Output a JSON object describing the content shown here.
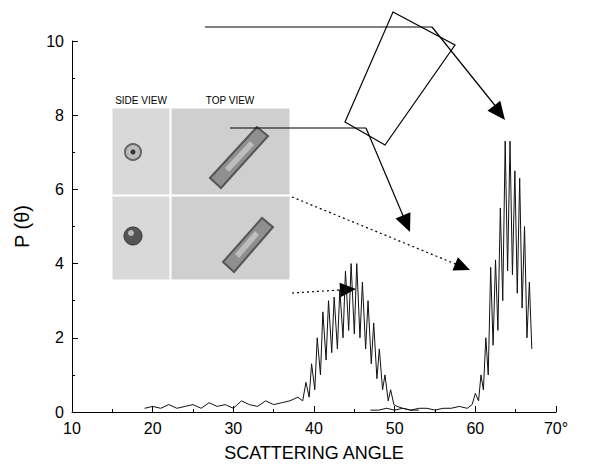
{
  "chart_data": {
    "type": "line",
    "x_label": "SCATTERING ANGLE",
    "y_label": "P (θ)",
    "annotations": [
      "SIDE VIEW",
      "TOP VIEW"
    ],
    "xlim": [
      10,
      70
    ],
    "xticks": [
      10,
      20,
      30,
      40,
      50,
      60,
      {
        "value": 70,
        "label": "70°"
      }
    ],
    "ylim": [
      0,
      10
    ],
    "yticks": [
      0,
      2,
      4,
      6,
      8,
      10
    ],
    "grid": false,
    "series": [
      {
        "color": "#111111",
        "x": [
          19,
          20,
          21,
          22,
          23,
          24,
          25,
          26,
          27,
          28,
          29,
          30,
          31,
          32,
          33,
          34,
          35,
          36,
          37,
          38,
          38.6,
          39.0,
          39.4,
          39.7,
          40.1,
          40.4,
          40.8,
          41.1,
          41.5,
          41.8,
          42.2,
          42.5,
          42.9,
          43.2,
          43.6,
          43.9,
          44.3,
          44.6,
          45.0,
          45.3,
          45.7,
          46.0,
          46.4,
          46.7,
          47.1,
          47.4,
          47.8,
          48.1,
          48.5,
          48.8,
          49.2,
          49.5,
          49.9,
          50.3,
          51,
          52,
          53
        ],
        "values": [
          0.1,
          0.15,
          0.1,
          0.2,
          0.1,
          0.15,
          0.2,
          0.1,
          0.25,
          0.15,
          0.2,
          0.1,
          0.3,
          0.2,
          0.15,
          0.3,
          0.2,
          0.25,
          0.3,
          0.4,
          0.3,
          0.8,
          0.4,
          1.3,
          0.6,
          2.0,
          1.0,
          2.7,
          1.4,
          3.0,
          1.6,
          3.1,
          1.7,
          3.3,
          2.0,
          3.8,
          2.2,
          4.0,
          2.1,
          4.0,
          2.0,
          3.5,
          1.7,
          3.0,
          1.3,
          2.4,
          0.9,
          1.7,
          0.6,
          1.0,
          0.3,
          0.6,
          0.2,
          0.15,
          0.1,
          0.05,
          0.05
        ]
      },
      {
        "color": "#111111",
        "x": [
          47,
          48,
          49,
          50,
          51,
          52,
          53,
          54,
          55,
          56,
          57,
          58,
          59,
          59.6,
          60.0,
          60.4,
          60.7,
          61.0,
          61.3,
          61.6,
          61.9,
          62.2,
          62.5,
          62.8,
          63.1,
          63.4,
          63.7,
          64.0,
          64.3,
          64.6,
          64.9,
          65.2,
          65.5,
          65.8,
          66.1,
          66.4,
          66.7,
          67.0
        ],
        "values": [
          0.05,
          0.05,
          0.1,
          0.05,
          0.1,
          0.05,
          0.1,
          0.1,
          0.05,
          0.1,
          0.1,
          0.15,
          0.1,
          0.2,
          0.5,
          0.3,
          1.0,
          0.6,
          2.0,
          1.0,
          3.9,
          1.8,
          4.1,
          2.2,
          5.5,
          3.0,
          7.3,
          3.8,
          7.3,
          3.7,
          6.5,
          3.2,
          6.3,
          2.8,
          5.0,
          2.0,
          3.5,
          1.7
        ]
      }
    ]
  }
}
